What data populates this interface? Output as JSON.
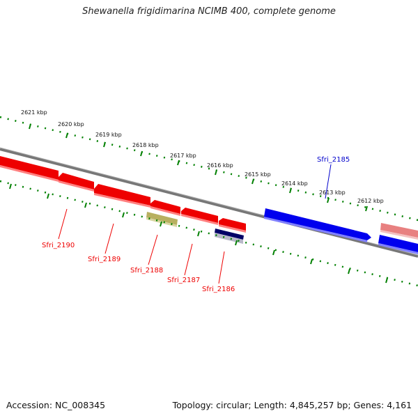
{
  "title": "Shewanella frigidimarina NCIMB 400, complete genome",
  "footer": {
    "accession": "Accession: NC_008345",
    "summary": "Topology: circular; Length: 4,845,257 bp; Genes: 4,161"
  },
  "ruler": {
    "unit": "kbp",
    "labels": [
      "2621 kbp",
      "2620 kbp",
      "2619 kbp",
      "2618 kbp",
      "2617 kbp",
      "2616 kbp",
      "2615 kbp",
      "2614 kbp",
      "2613 kbp",
      "2612 kbp"
    ]
  },
  "genes": {
    "forward_labeled": "Sfri_2185",
    "reverse_labeled": [
      "Sfri_2190",
      "Sfri_2189",
      "Sfri_2188",
      "Sfri_2187",
      "Sfri_2186"
    ]
  },
  "colors": {
    "forward_gene": "#0000ee",
    "reverse_gene": "#ee0000",
    "ruler_ticks": "#008000",
    "backbone": "#777777",
    "olive_feature": "#b8b060",
    "navy_feature": "#000066",
    "pink_feature": "#e88080"
  }
}
